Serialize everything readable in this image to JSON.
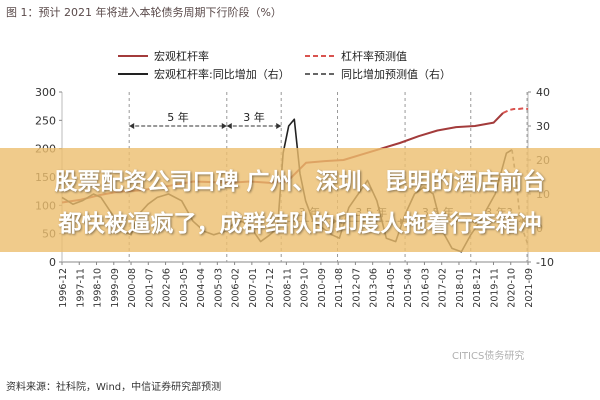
{
  "figure_title": "图 1：预计 2021 年将进入本轮债务周期下行阶段（%）",
  "source": "资料来源：社科院，Wind，中信证券研究部预测",
  "watermark": "CITICS债务研究",
  "overlay": {
    "line1": "股票配资公司口碑 广州、深圳、昆明的酒店前台",
    "line2": "都快被逼疯了，成群结队的印度人拖着行李箱冲"
  },
  "colors": {
    "leverage": "#a33b3b",
    "yoy": "#222222",
    "forecast_leverage": "#d9534f",
    "forecast_yoy": "#666666",
    "annotation": "#333333"
  },
  "chart_data": {
    "type": "line",
    "xlabel": "",
    "ylabel_left": "",
    "ylabel_right": "",
    "x_ticks": [
      "1996-12",
      "1997-11",
      "1998-10",
      "1999-09",
      "2000-08",
      "2001-07",
      "2002-06",
      "2003-05",
      "2004-04",
      "2005-03",
      "2006-02",
      "2007-01",
      "2007-12",
      "2008-11",
      "2009-10",
      "2010-09",
      "2011-08",
      "2012-07",
      "2013-06",
      "2014-05",
      "2015-04",
      "2016-03",
      "2017-02",
      "2018-01",
      "2018-12",
      "2019-11",
      "2020-10",
      "2021-09"
    ],
    "ylim_left": [
      0,
      300
    ],
    "yticks_left": [
      "0",
      "50",
      "100",
      "150",
      "200",
      "250",
      "300"
    ],
    "ylim_right": [
      -10,
      40
    ],
    "yticks_right": [
      "-10",
      "0",
      "10",
      "20",
      "30",
      "40"
    ],
    "legend": [
      {
        "label": "宏观杠杆率",
        "style": "solid",
        "color": "#a33b3b"
      },
      {
        "label": "杠杆率预测值",
        "style": "dashed",
        "color": "#d9534f"
      },
      {
        "label": "宏观杠杆率:同比增加（右）",
        "style": "solid",
        "color": "#222222"
      },
      {
        "label": "同比增加预测值（右）",
        "style": "dashed",
        "color": "#666666"
      }
    ],
    "legend_position": "top-center",
    "series": [
      {
        "name": "宏观杠杆率",
        "axis": "left",
        "x": [
          1996.92,
          1997.92,
          1998.92,
          1999.92,
          2000.92,
          2001.92,
          2002.92,
          2003.92,
          2004.92,
          2005.92,
          2006.92,
          2007.92,
          2008.92,
          2009.92,
          2010.92,
          2011.92,
          2012.92,
          2013.92,
          2014.92,
          2015.92,
          2016.92,
          2017.92,
          2018.92,
          2019.92,
          2020.42
        ],
        "values": [
          105,
          110,
          118,
          124,
          126,
          130,
          136,
          142,
          141,
          140,
          142,
          140,
          142,
          175,
          178,
          180,
          190,
          200,
          210,
          222,
          232,
          238,
          240,
          246,
          263
        ]
      },
      {
        "name": "杠杆率预测值",
        "axis": "left",
        "x": [
          2020.42,
          2020.75,
          2021.0,
          2021.25,
          2021.5,
          2021.75
        ],
        "values": [
          263,
          268,
          270,
          270,
          271,
          270
        ]
      },
      {
        "name": "宏观杠杆率:同比增加（右）",
        "axis": "right",
        "x": [
          1996.92,
          1997.5,
          1998.0,
          1998.6,
          1999.0,
          1999.6,
          2000.2,
          2000.6,
          2001.0,
          2001.5,
          2002.0,
          2002.6,
          2003.3,
          2003.9,
          2004.5,
          2005.0,
          2005.6,
          2006.0,
          2006.5,
          2007.0,
          2007.5,
          2008.0,
          2008.4,
          2008.7,
          2009.0,
          2009.3,
          2009.6,
          2009.9,
          2010.3,
          2010.8,
          2011.3,
          2011.7,
          2012.2,
          2012.7,
          2013.2,
          2013.7,
          2014.2,
          2014.7,
          2015.2,
          2015.7,
          2016.2,
          2016.7,
          2017.2,
          2017.7,
          2018.2,
          2018.7,
          2019.2,
          2019.7,
          2020.0,
          2020.3,
          2020.6,
          2020.9
        ],
        "values": [
          9,
          7,
          8,
          10,
          9,
          4,
          -1,
          -2,
          4,
          7,
          9,
          10,
          8,
          2,
          -1,
          -2,
          -1,
          1,
          2,
          0,
          -4,
          -2,
          0,
          22,
          30,
          32,
          16,
          8,
          2,
          0,
          -2,
          -3,
          6,
          10,
          14,
          8,
          -3,
          -4,
          4,
          10,
          12,
          10,
          -1,
          -6,
          -7,
          -2,
          2,
          7,
          10,
          16,
          22,
          23
        ]
      },
      {
        "name": "同比增加预测值（右）",
        "axis": "right",
        "x": [
          2020.9,
          2021.1,
          2021.3,
          2021.5,
          2021.75
        ],
        "values": [
          23,
          15,
          4,
          -1,
          -5
        ]
      }
    ],
    "annotations": [
      {
        "text": "5 年",
        "x_start": 2000.5,
        "x_end": 2005.7,
        "y": 30
      },
      {
        "text": "3 年",
        "x_start": 2005.7,
        "x_end": 2008.6,
        "y": 30
      },
      {
        "text": "3 年",
        "x_start": 2008.6,
        "x_end": 2011.6,
        "y": 2
      },
      {
        "text": "3.5 年",
        "x_start": 2011.6,
        "x_end": 2015.2,
        "y": 2
      },
      {
        "text": "3.5 年",
        "x_start": 2015.2,
        "x_end": 2018.7,
        "y": 2
      },
      {
        "text": "3 年?",
        "x_start": 2018.7,
        "x_end": 2021.7,
        "y": 2
      }
    ]
  }
}
